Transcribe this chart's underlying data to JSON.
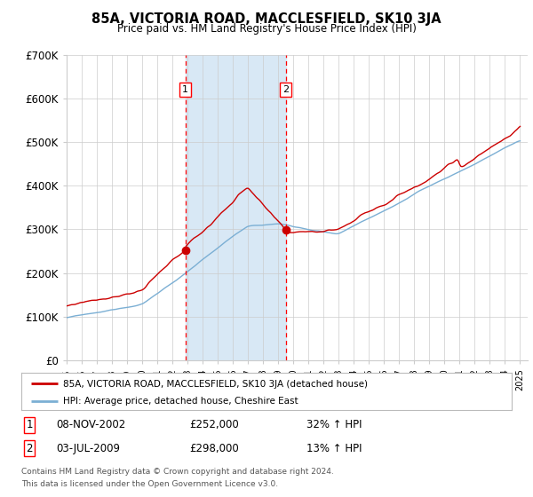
{
  "title": "85A, VICTORIA ROAD, MACCLESFIELD, SK10 3JA",
  "subtitle": "Price paid vs. HM Land Registry's House Price Index (HPI)",
  "ylim": [
    0,
    700000
  ],
  "xlim_start": 1995,
  "xlim_end": 2025.5,
  "purchase1": {
    "date_num": 2002.86,
    "price": 252000,
    "label": "1",
    "date_str": "08-NOV-2002",
    "pct": "32%"
  },
  "purchase2": {
    "date_num": 2009.5,
    "price": 298000,
    "label": "2",
    "date_str": "03-JUL-2009",
    "pct": "13%"
  },
  "legend_property": "85A, VICTORIA ROAD, MACCLESFIELD, SK10 3JA (detached house)",
  "legend_hpi": "HPI: Average price, detached house, Cheshire East",
  "footnote1": "Contains HM Land Registry data © Crown copyright and database right 2024.",
  "footnote2": "This data is licensed under the Open Government Licence v3.0.",
  "property_color": "#cc0000",
  "hpi_color": "#7bafd4",
  "shade_color": "#d8e8f5",
  "grid_color": "#cccccc",
  "bg_color": "#ffffff"
}
